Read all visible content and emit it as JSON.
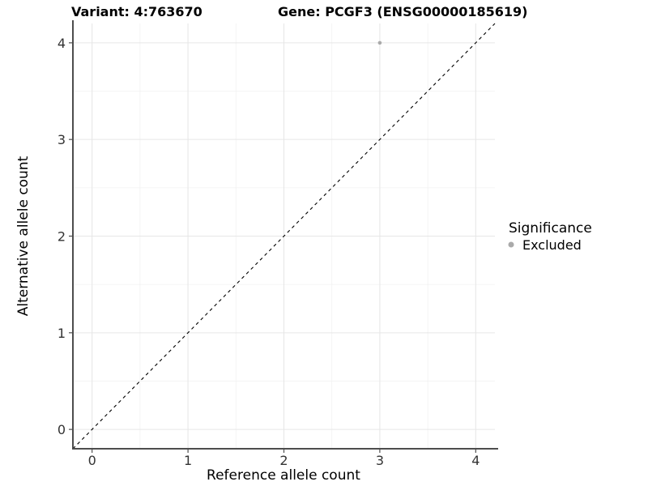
{
  "chart_data": {
    "type": "scatter",
    "titles": {
      "left": "Variant: 4:763670",
      "right": "Gene: PCGF3 (ENSG00000185619)"
    },
    "xlabel": "Reference allele count",
    "ylabel": "Alternative allele count",
    "xlim": [
      -0.2,
      4.2
    ],
    "ylim": [
      -0.2,
      4.2
    ],
    "xticks": [
      0,
      1,
      2,
      3,
      4
    ],
    "yticks": [
      0,
      1,
      2,
      3,
      4
    ],
    "minor_grid_step": 0.5,
    "grid": "major+minor",
    "points": [
      {
        "x": 3,
        "y": 4,
        "series": "Excluded"
      }
    ],
    "reference_line": {
      "kind": "identity",
      "slope": 1,
      "intercept": 0,
      "style": "dashed",
      "color": "#000000"
    },
    "legend": {
      "title": "Significance",
      "position": "right",
      "entries": [
        {
          "label": "Excluded",
          "color": "#aaaaaa"
        }
      ]
    },
    "colors": {
      "background": "#ffffff",
      "grid_major": "#e6e6e6",
      "grid_minor": "#f1f1f1",
      "axis_line": "#4d4d4d",
      "tick_text": "#333333",
      "title_text": "#000000",
      "point": "#aaaaaa"
    }
  }
}
